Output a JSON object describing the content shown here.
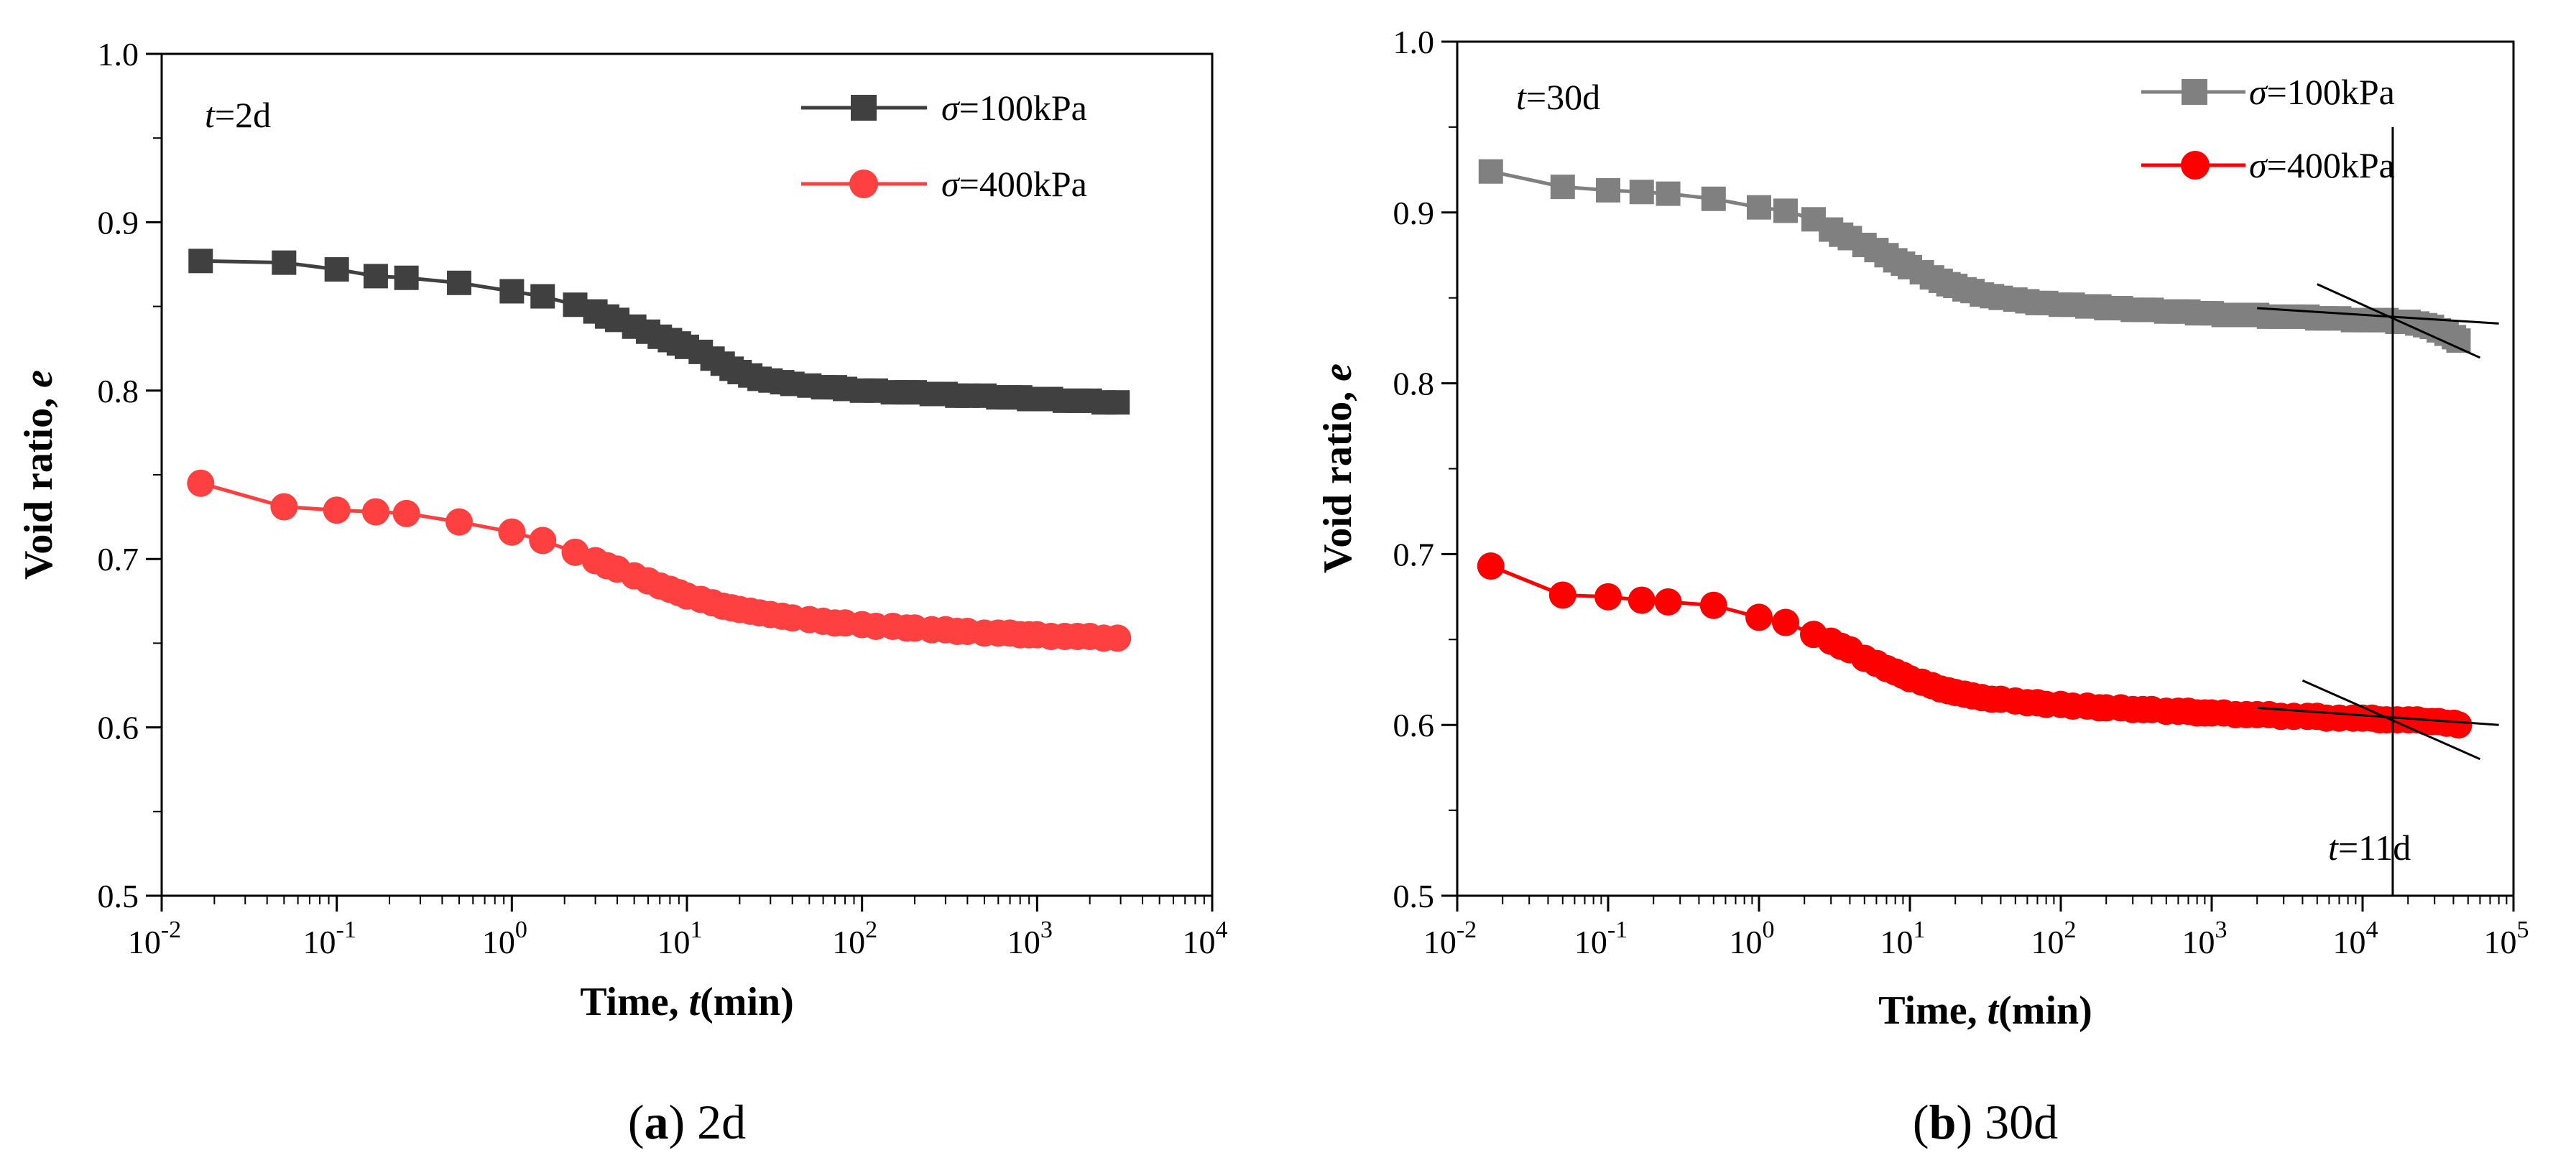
{
  "chart_data": [
    {
      "panel": "a",
      "type": "scatter",
      "caption_letter": "a",
      "caption_text": " 2d",
      "annotation": "t=2d",
      "xlabel": "Time, t(min)",
      "ylabel": "Void ratio, e",
      "xscale": "log",
      "xlim": [
        0.01,
        10000
      ],
      "ylim": [
        0.5,
        1.0
      ],
      "x_ticks": [
        "10^-2",
        "10^-1",
        "10^0",
        "10^1",
        "10^2",
        "10^3",
        "10^4"
      ],
      "y_ticks": [
        "0.5",
        "0.6",
        "0.7",
        "0.8",
        "0.9",
        "1.0"
      ],
      "legend_position": "top-right",
      "series": [
        {
          "name": "σ=100kPa",
          "color": "#404040",
          "marker": "square",
          "x": [
            0.0167,
            0.05,
            0.1,
            0.167,
            0.25,
            0.5,
            1,
            1.5,
            2.3,
            3,
            3.5,
            4,
            5,
            6,
            7,
            8,
            9,
            10,
            12,
            14,
            16,
            18,
            20,
            23,
            26,
            30,
            35,
            40,
            50,
            60,
            70,
            80,
            100,
            120,
            150,
            180,
            200,
            250,
            300,
            350,
            400,
            500,
            600,
            700,
            800,
            900,
            1000,
            1200,
            1440,
            1700,
            2000,
            2400,
            2880
          ],
          "y": [
            0.877,
            0.876,
            0.872,
            0.868,
            0.867,
            0.864,
            0.859,
            0.856,
            0.851,
            0.847,
            0.844,
            0.842,
            0.838,
            0.835,
            0.832,
            0.83,
            0.828,
            0.826,
            0.823,
            0.819,
            0.816,
            0.813,
            0.811,
            0.809,
            0.807,
            0.806,
            0.805,
            0.804,
            0.803,
            0.802,
            0.802,
            0.801,
            0.8,
            0.8,
            0.799,
            0.799,
            0.799,
            0.798,
            0.798,
            0.797,
            0.797,
            0.797,
            0.796,
            0.796,
            0.796,
            0.795,
            0.795,
            0.795,
            0.794,
            0.794,
            0.794,
            0.793,
            0.793
          ]
        },
        {
          "name": "σ=400kPa",
          "color": "#ff4040",
          "marker": "circle",
          "x": [
            0.0167,
            0.05,
            0.1,
            0.167,
            0.25,
            0.5,
            1,
            1.5,
            2.3,
            3,
            3.5,
            4,
            5,
            6,
            7,
            8,
            9,
            10,
            12,
            14,
            16,
            18,
            20,
            23,
            26,
            30,
            35,
            40,
            50,
            60,
            70,
            80,
            100,
            120,
            150,
            180,
            200,
            250,
            300,
            350,
            400,
            500,
            600,
            700,
            800,
            900,
            1000,
            1200,
            1440,
            1700,
            2000,
            2400,
            2880
          ],
          "y": [
            0.745,
            0.731,
            0.729,
            0.728,
            0.727,
            0.722,
            0.716,
            0.711,
            0.704,
            0.699,
            0.696,
            0.694,
            0.69,
            0.687,
            0.684,
            0.682,
            0.68,
            0.678,
            0.676,
            0.674,
            0.672,
            0.671,
            0.67,
            0.669,
            0.668,
            0.667,
            0.666,
            0.665,
            0.664,
            0.663,
            0.662,
            0.662,
            0.661,
            0.66,
            0.66,
            0.659,
            0.659,
            0.658,
            0.658,
            0.657,
            0.657,
            0.656,
            0.656,
            0.656,
            0.655,
            0.655,
            0.655,
            0.654,
            0.654,
            0.654,
            0.654,
            0.653,
            0.653
          ]
        }
      ]
    },
    {
      "panel": "b",
      "type": "scatter",
      "caption_letter": "b",
      "caption_text": " 30d",
      "annotation": "t=30d",
      "annotation_2": "t=11d",
      "xlabel": "Time,  t(min)",
      "ylabel": "Void ratio, e",
      "xscale": "log",
      "xlim": [
        0.01,
        100000
      ],
      "ylim": [
        0.5,
        1.0
      ],
      "x_ticks": [
        "10^-2",
        "10^-1",
        "10^0",
        "10^1",
        "10^2",
        "10^3",
        "10^4",
        "10^5"
      ],
      "y_ticks": [
        "0.5",
        "0.6",
        "0.7",
        "0.8",
        "0.9",
        "1.0"
      ],
      "legend_position": "top-right",
      "vertical_line_x": 15840,
      "tangent_lines": [
        {
          "series": "σ=100kPa",
          "x": [
            2000,
            80000
          ],
          "y": [
            0.844,
            0.835
          ]
        },
        {
          "series": "σ=100kPa",
          "x": [
            5000,
            60000
          ],
          "y": [
            0.858,
            0.815
          ]
        },
        {
          "series": "σ=400kPa",
          "x": [
            2000,
            80000
          ],
          "y": [
            0.61,
            0.6
          ]
        },
        {
          "series": "σ=400kPa",
          "x": [
            4000,
            60000
          ],
          "y": [
            0.626,
            0.58
          ]
        }
      ],
      "series": [
        {
          "name": "σ=100kPa",
          "color": "#808080",
          "marker": "square",
          "x": [
            0.0167,
            0.05,
            0.1,
            0.167,
            0.25,
            0.5,
            1,
            1.5,
            2.3,
            3,
            3.5,
            4,
            5,
            6,
            7,
            8,
            9,
            10,
            12,
            14,
            16,
            18,
            20,
            23,
            26,
            30,
            35,
            40,
            50,
            60,
            70,
            80,
            100,
            120,
            150,
            180,
            200,
            250,
            300,
            350,
            400,
            500,
            600,
            700,
            800,
            900,
            1000,
            1200,
            1440,
            1700,
            2000,
            2400,
            2880,
            3500,
            4320,
            5000,
            5760,
            7000,
            8640,
            10000,
            11520,
            13000,
            14400,
            17000,
            20160,
            23000,
            26000,
            28800,
            32000,
            36000,
            40320,
            43200
          ],
          "y": [
            0.924,
            0.915,
            0.913,
            0.912,
            0.911,
            0.908,
            0.903,
            0.901,
            0.896,
            0.89,
            0.887,
            0.885,
            0.881,
            0.878,
            0.875,
            0.872,
            0.87,
            0.868,
            0.865,
            0.862,
            0.86,
            0.858,
            0.857,
            0.855,
            0.854,
            0.852,
            0.851,
            0.85,
            0.849,
            0.848,
            0.847,
            0.847,
            0.846,
            0.846,
            0.845,
            0.845,
            0.844,
            0.844,
            0.843,
            0.843,
            0.843,
            0.842,
            0.842,
            0.842,
            0.841,
            0.841,
            0.841,
            0.84,
            0.84,
            0.84,
            0.84,
            0.839,
            0.839,
            0.839,
            0.839,
            0.838,
            0.838,
            0.838,
            0.837,
            0.837,
            0.837,
            0.837,
            0.837,
            0.836,
            0.836,
            0.835,
            0.834,
            0.833,
            0.831,
            0.829,
            0.827,
            0.825
          ]
        },
        {
          "name": "σ=400kPa",
          "color": "#ff0000",
          "marker": "circle",
          "x": [
            0.0167,
            0.05,
            0.1,
            0.167,
            0.25,
            0.5,
            1,
            1.5,
            2.3,
            3,
            3.5,
            4,
            5,
            6,
            7,
            8,
            9,
            10,
            12,
            14,
            16,
            18,
            20,
            23,
            26,
            30,
            35,
            40,
            50,
            60,
            70,
            80,
            100,
            120,
            150,
            180,
            200,
            250,
            300,
            350,
            400,
            500,
            600,
            700,
            800,
            900,
            1000,
            1200,
            1440,
            1700,
            2000,
            2400,
            2880,
            3500,
            4320,
            5000,
            5760,
            7000,
            8640,
            10000,
            11520,
            13000,
            14400,
            17000,
            20160,
            23000,
            26000,
            28800,
            32000,
            36000,
            40320,
            43200
          ],
          "y": [
            0.693,
            0.676,
            0.675,
            0.673,
            0.672,
            0.67,
            0.663,
            0.66,
            0.653,
            0.649,
            0.646,
            0.644,
            0.639,
            0.636,
            0.633,
            0.631,
            0.629,
            0.627,
            0.625,
            0.623,
            0.621,
            0.62,
            0.619,
            0.618,
            0.617,
            0.616,
            0.615,
            0.615,
            0.614,
            0.613,
            0.613,
            0.612,
            0.612,
            0.611,
            0.611,
            0.61,
            0.61,
            0.61,
            0.609,
            0.609,
            0.609,
            0.608,
            0.608,
            0.608,
            0.607,
            0.607,
            0.607,
            0.607,
            0.606,
            0.606,
            0.606,
            0.606,
            0.605,
            0.605,
            0.605,
            0.605,
            0.604,
            0.604,
            0.604,
            0.604,
            0.604,
            0.603,
            0.603,
            0.603,
            0.603,
            0.603,
            0.602,
            0.602,
            0.602,
            0.601,
            0.601,
            0.6
          ]
        }
      ]
    }
  ]
}
